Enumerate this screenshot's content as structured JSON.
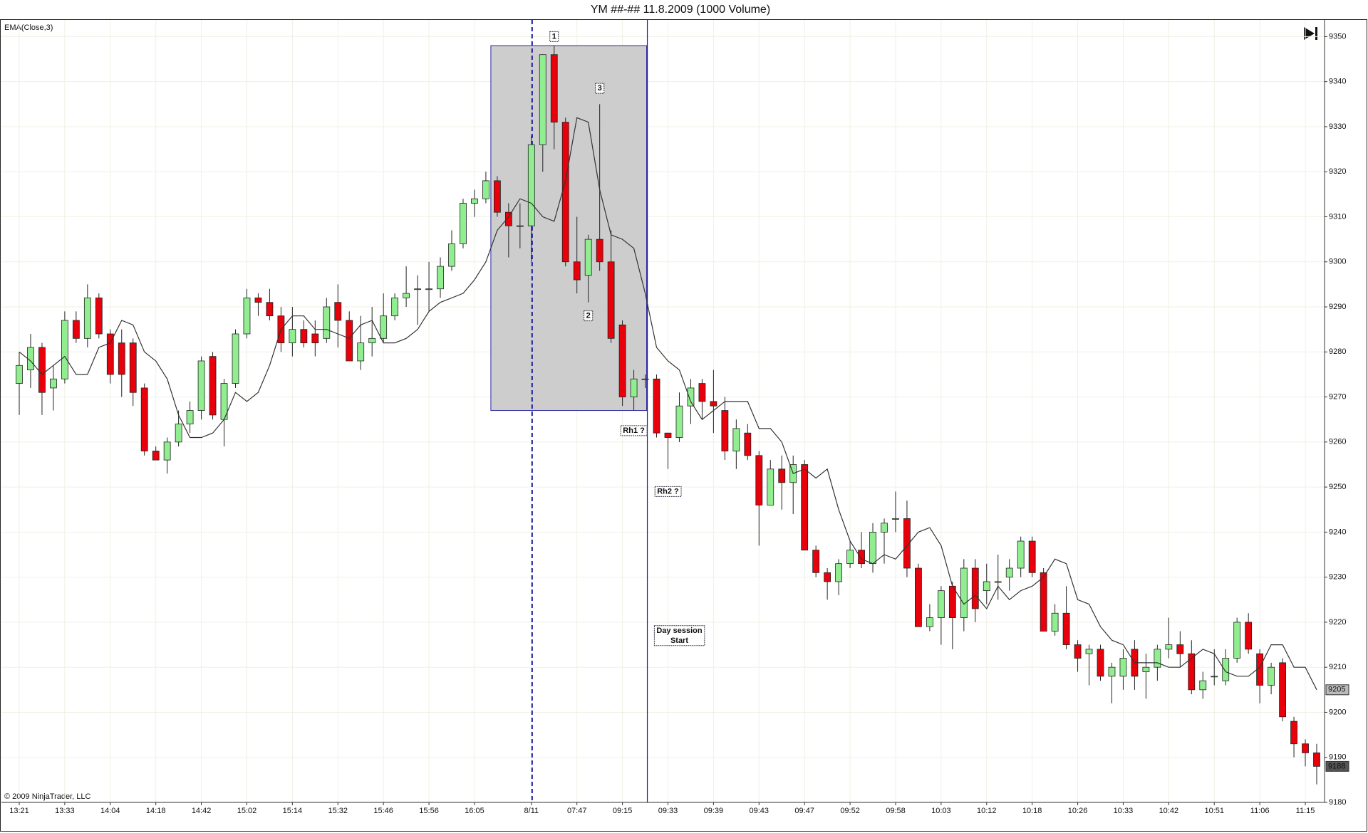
{
  "chart_data": {
    "type": "candlestick",
    "title": "YM ##-##  11.8.2009 (1000 Volume)",
    "copyright": "© 2009 NinjaTrader, LLC",
    "categories": [
      "13:21",
      null,
      null,
      null,
      "13:33",
      null,
      null,
      null,
      "14:04",
      null,
      null,
      null,
      "14:18",
      null,
      null,
      null,
      "14:42",
      null,
      null,
      null,
      "15:02",
      null,
      null,
      null,
      "15:14",
      null,
      null,
      null,
      "15:32",
      null,
      null,
      null,
      "15:46",
      null,
      null,
      null,
      "15:56",
      null,
      null,
      null,
      "16:05",
      null,
      null,
      null,
      null,
      "8/11",
      null,
      null,
      null,
      "07:47",
      null,
      null,
      null,
      "09:15",
      null,
      null,
      null,
      "09:33",
      null,
      null,
      null,
      "09:39",
      null,
      null,
      null,
      "09:43",
      null,
      null,
      null,
      "09:47",
      null,
      null,
      null,
      "09:52",
      null,
      null,
      null,
      "09:58",
      null,
      null,
      null,
      "10:03",
      null,
      null,
      null,
      "10:12",
      null,
      null,
      null,
      "10:18",
      null,
      null,
      null,
      "10:26",
      null,
      null,
      null,
      "10:33",
      null,
      null,
      null,
      "10:42",
      null,
      null,
      null,
      "10:51",
      null,
      null,
      null,
      "11:06",
      null,
      null,
      null,
      "11:15",
      null
    ],
    "open": [
      9273,
      9276,
      9281,
      9272,
      9274,
      9287,
      9283,
      9292,
      9284,
      9282,
      9282,
      9272,
      9258,
      9256,
      9260,
      9264,
      9267,
      9279,
      9265,
      9273,
      9284,
      9292,
      9291,
      9288,
      9282,
      9285,
      9284,
      9283,
      9291,
      9287,
      9278,
      9282,
      9283,
      9288,
      9292,
      9294,
      9294,
      9294,
      9299,
      9304,
      9313,
      9314,
      9318,
      9311,
      9308,
      9308,
      9326,
      9346,
      9331,
      9300,
      9297,
      9305,
      9300,
      9286,
      9270,
      9274,
      9274,
      9262,
      9261,
      9268,
      9273,
      9269,
      9267,
      9258,
      9262,
      9257,
      9246,
      9254,
      9251,
      9255,
      9236,
      9231,
      9229,
      9233,
      9236,
      9233,
      9240,
      9243,
      9243,
      9232,
      9219,
      9221,
      9228,
      9221,
      9232,
      9227,
      9229,
      9230,
      9232,
      9238,
      9231,
      9218,
      9222,
      9215,
      9213,
      9214,
      9208,
      9208,
      9214,
      9209,
      9210,
      9214,
      9215,
      9213,
      9205,
      9208,
      9207,
      9212,
      9220,
      9213,
      9206,
      9211,
      9198,
      9193,
      9191
    ],
    "high": [
      9280,
      9284,
      9282,
      9277,
      9289,
      9289,
      9295,
      9293,
      9285,
      9285,
      9283,
      9273,
      9259,
      9261,
      9267,
      9269,
      9279,
      9280,
      9274,
      9285,
      9294,
      9293,
      9294,
      9290,
      9290,
      9287,
      9287,
      9292,
      9295,
      9289,
      9288,
      9290,
      9293,
      9293,
      9299,
      9297,
      9300,
      9301,
      9307,
      9314,
      9316,
      9320,
      9319,
      9313,
      9313,
      9328,
      9346,
      9348,
      9332,
      9310,
      9306,
      9335,
      9307,
      9287,
      9276,
      9275,
      9275,
      9262,
      9271,
      9274,
      9274,
      9276,
      9270,
      9265,
      9264,
      9258,
      9256,
      9257,
      9257,
      9256,
      9237,
      9232,
      9234,
      9238,
      9240,
      9242,
      9243,
      9249,
      9247,
      9233,
      9224,
      9228,
      9229,
      9234,
      9234,
      9233,
      9235,
      9234,
      9239,
      9239,
      9232,
      9224,
      9228,
      9216,
      9215,
      9215,
      9211,
      9214,
      9216,
      9213,
      9215,
      9221,
      9218,
      9216,
      9209,
      9214,
      9214,
      9221,
      9222,
      9214,
      9211,
      9212,
      9199,
      9194,
      9193
    ],
    "low": [
      9266,
      9272,
      9266,
      9267,
      9273,
      9282,
      9281,
      9283,
      9273,
      9270,
      9268,
      9257,
      9256,
      9253,
      9259,
      9262,
      9265,
      9265,
      9259,
      9272,
      9283,
      9288,
      9287,
      9280,
      9279,
      9281,
      9279,
      9282,
      9281,
      9278,
      9276,
      9279,
      9282,
      9287,
      9290,
      9286,
      9289,
      9292,
      9298,
      9303,
      9310,
      9313,
      9310,
      9301,
      9303,
      9300,
      9320,
      9325,
      9299,
      9293,
      9291,
      9298,
      9282,
      9268,
      9267,
      9272,
      9261,
      9254,
      9260,
      9264,
      9265,
      9262,
      9256,
      9254,
      9256,
      9237,
      9246,
      9245,
      9244,
      9236,
      9230,
      9225,
      9226,
      9232,
      9232,
      9231,
      9233,
      9240,
      9230,
      9219,
      9218,
      9215,
      9214,
      9218,
      9220,
      9224,
      9225,
      9227,
      9230,
      9230,
      9218,
      9217,
      9214,
      9209,
      9206,
      9207,
      9202,
      9205,
      9205,
      9203,
      9207,
      9212,
      9210,
      9204,
      9203,
      9206,
      9206,
      9211,
      9213,
      9202,
      9204,
      9198,
      9190,
      9188,
      9184
    ],
    "close": [
      9277,
      9281,
      9271,
      9274,
      9287,
      9283,
      9292,
      9284,
      9275,
      9275,
      9271,
      9258,
      9256,
      9260,
      9264,
      9267,
      9278,
      9266,
      9273,
      9284,
      9292,
      9291,
      9288,
      9282,
      9285,
      9282,
      9282,
      9290,
      9287,
      9278,
      9282,
      9283,
      9288,
      9292,
      9293,
      9294,
      9294,
      9299,
      9304,
      9313,
      9314,
      9318,
      9311,
      9308,
      9308,
      9326,
      9346,
      9331,
      9300,
      9296,
      9305,
      9300,
      9283,
      9270,
      9274,
      9274,
      9262,
      9261,
      9268,
      9272,
      9269,
      9268,
      9258,
      9263,
      9257,
      9246,
      9254,
      9251,
      9255,
      9236,
      9231,
      9229,
      9233,
      9236,
      9233,
      9240,
      9242,
      9243,
      9232,
      9219,
      9221,
      9227,
      9221,
      9232,
      9223,
      9229,
      9229,
      9232,
      9238,
      9231,
      9218,
      9222,
      9215,
      9212,
      9214,
      9208,
      9210,
      9212,
      9208,
      9210,
      9214,
      9215,
      9213,
      9205,
      9207,
      9208,
      9212,
      9220,
      9214,
      9206,
      9210,
      9199,
      9193,
      9191,
      9188
    ],
    "up_color": "#90ee90",
    "down_color": "#e8000b",
    "series": [
      {
        "name": "EMA(Close,3)",
        "color": "#333333",
        "values": [
          9280,
          9278,
          9275,
          9277,
          9279,
          9275,
          9275,
          9281,
          9282,
          9287,
          9286,
          9280,
          9278,
          9274,
          9266,
          9261,
          9261,
          9262,
          9265,
          9271,
          9269,
          9271,
          9277,
          9285,
          9288,
          9288,
          9285,
          9285,
          9284,
          9283,
          9286,
          9287,
          9282,
          9282,
          9283,
          9285,
          9289,
          9291,
          9292,
          9293,
          9296,
          9300,
          9307,
          9310,
          9314,
          9313,
          9310,
          9309,
          9318,
          9332,
          9331,
          9316,
          9306,
          9305,
          9303,
          9293,
          9281,
          9278,
          9276,
          9269,
          9265,
          9267,
          9269,
          9269,
          9269,
          9263,
          9263,
          9260,
          9253,
          9254,
          9252,
          9254,
          9245,
          9238,
          9234,
          9233,
          9235,
          9234,
          9237,
          9240,
          9241,
          9237,
          9228,
          9224,
          9226,
          9223,
          9228,
          9225,
          9227,
          9228,
          9230,
          9234,
          9233,
          9225,
          9224,
          9219,
          9216,
          9215,
          9211,
          9211,
          9211,
          9210,
          9210,
          9212,
          9214,
          9213,
          9209,
          9208,
          9208,
          9210,
          9215,
          9215,
          9210,
          9210,
          9205
        ]
      }
    ],
    "ylim": [
      9180,
      9353.7
    ],
    "yticks": [
      9180,
      9190,
      9200,
      9210,
      9220,
      9230,
      9240,
      9250,
      9260,
      9270,
      9280,
      9290,
      9300,
      9310,
      9320,
      9330,
      9340,
      9350
    ],
    "grid": true,
    "zone": {
      "start": 42,
      "end": 55,
      "low": 9267,
      "high": 9348
    },
    "session_break": 45,
    "day_session_line": 55,
    "annotations": [
      {
        "lines": [
          "1"
        ],
        "index": 47,
        "price": 9350
      },
      {
        "lines": [
          "3"
        ],
        "index": 51,
        "price": 9338.5
      },
      {
        "lines": [
          "2"
        ],
        "index": 50,
        "price": 9288
      },
      {
        "lines": [
          "Rh1 ?"
        ],
        "index": 54,
        "price": 9262.5
      },
      {
        "lines": [
          "Rh2 ?"
        ],
        "index": 57,
        "price": 9249
      },
      {
        "lines": [
          "Day session",
          "Start"
        ],
        "index": 58,
        "price": 9217
      }
    ]
  }
}
